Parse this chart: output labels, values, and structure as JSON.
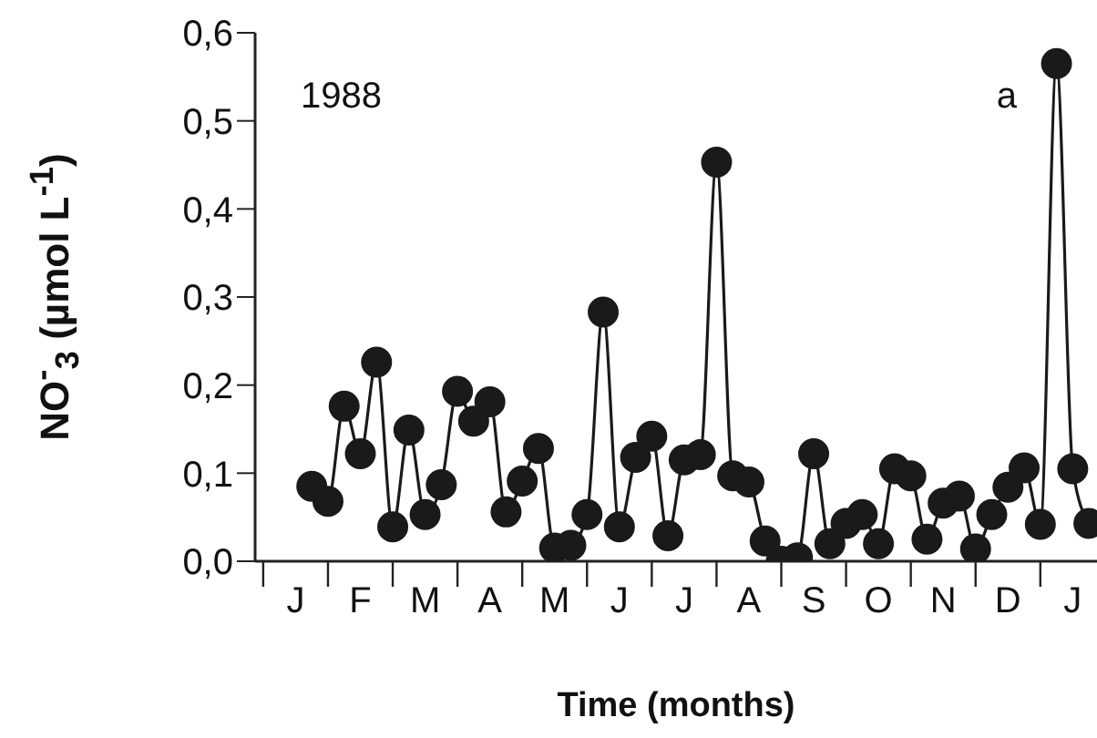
{
  "chart_data": {
    "type": "line",
    "xlabel": "Time (months)",
    "ylabel": "NO$^{-}$$_{3}$ (µmol L$^{-1}$)",
    "annotations": [
      "1988",
      "a"
    ],
    "categories": [
      null,
      null,
      "J",
      null,
      null,
      null,
      "F",
      null,
      null,
      null,
      "M",
      null,
      null,
      null,
      "A",
      null,
      null,
      null,
      "M",
      null,
      null,
      null,
      "J",
      null,
      null,
      null,
      "J",
      null,
      null,
      null,
      "A",
      null,
      null,
      null,
      "S",
      null,
      null,
      null,
      "O",
      null,
      null,
      null,
      "N",
      null,
      null,
      null,
      "D",
      null,
      null,
      null,
      "J",
      null
    ],
    "series": [
      {
        "color": "#1a1a1a",
        "values": [
          null,
          null,
          null,
          0.085,
          0.068,
          0.176,
          0.122,
          0.226,
          0.039,
          0.149,
          0.053,
          0.087,
          0.193,
          0.159,
          0.181,
          0.056,
          0.091,
          0.128,
          0.015,
          0.018,
          0.053,
          0.283,
          0.039,
          0.118,
          0.142,
          0.029,
          0.115,
          0.121,
          0.453,
          0.097,
          0.09,
          0.023,
          0.0,
          0.004,
          0.122,
          0.02,
          0.043,
          0.053,
          0.02,
          0.105,
          0.097,
          0.025,
          0.066,
          0.074,
          0.014,
          0.053,
          0.084,
          0.106,
          0.042,
          0.565,
          0.105,
          0.043
        ]
      }
    ],
    "ylim": [
      0,
      0.6
    ],
    "yticks": [
      {
        "value": 0,
        "label": "0,0"
      },
      {
        "value": 0.1,
        "label": "0,1"
      },
      {
        "value": 0.2,
        "label": "0,2"
      },
      {
        "value": 0.3,
        "label": "0,3"
      },
      {
        "value": 0.4,
        "label": "0,4"
      },
      {
        "value": 0.5,
        "label": "0,5"
      },
      {
        "value": 0.6,
        "label": "0,6"
      }
    ],
    "grid": false,
    "legend": false,
    "marker": "circle",
    "line_style": "solid"
  }
}
